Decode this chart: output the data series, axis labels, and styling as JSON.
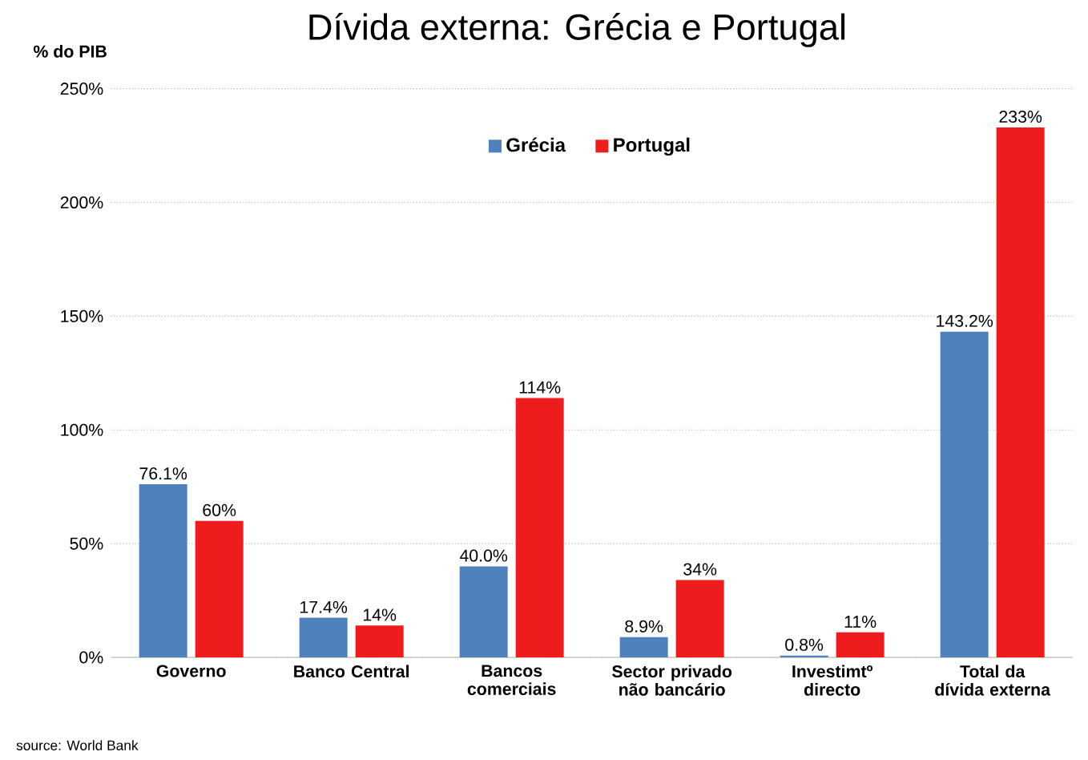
{
  "chart_data": {
    "type": "bar",
    "title": "Dívida externa:  Grécia e Portugal",
    "ylabel": "% do PIB",
    "categories": [
      "Governo",
      "Banco Central",
      "Bancos comerciais",
      "Sector privado não bancário",
      "Investimtº directo",
      "Total da dívida externa"
    ],
    "series": [
      {
        "name": "Grécia",
        "color": "#4f81bd",
        "values": [
          76.1,
          17.4,
          40.0,
          8.9,
          0.8,
          143.2
        ],
        "value_labels": [
          "76.1%",
          "17.4%",
          "40.0%",
          "8.9%",
          "0.8%",
          "143.2%"
        ]
      },
      {
        "name": "Portugal",
        "color": "#ee1c1c",
        "values": [
          60,
          14,
          114,
          34,
          11,
          233
        ],
        "value_labels": [
          "60%",
          "14%",
          "114%",
          "34%",
          "11%",
          "233%"
        ]
      }
    ],
    "ylim": [
      0,
      250
    ],
    "yticks": [
      {
        "value": 0,
        "label": "0%"
      },
      {
        "value": 50,
        "label": "50%"
      },
      {
        "value": 100,
        "label": "100%"
      },
      {
        "value": 150,
        "label": "150%"
      },
      {
        "value": 200,
        "label": "200%"
      },
      {
        "value": 250,
        "label": "250%"
      }
    ],
    "grid": "y",
    "legend": "top",
    "annotations": [
      "source: World Bank"
    ]
  }
}
